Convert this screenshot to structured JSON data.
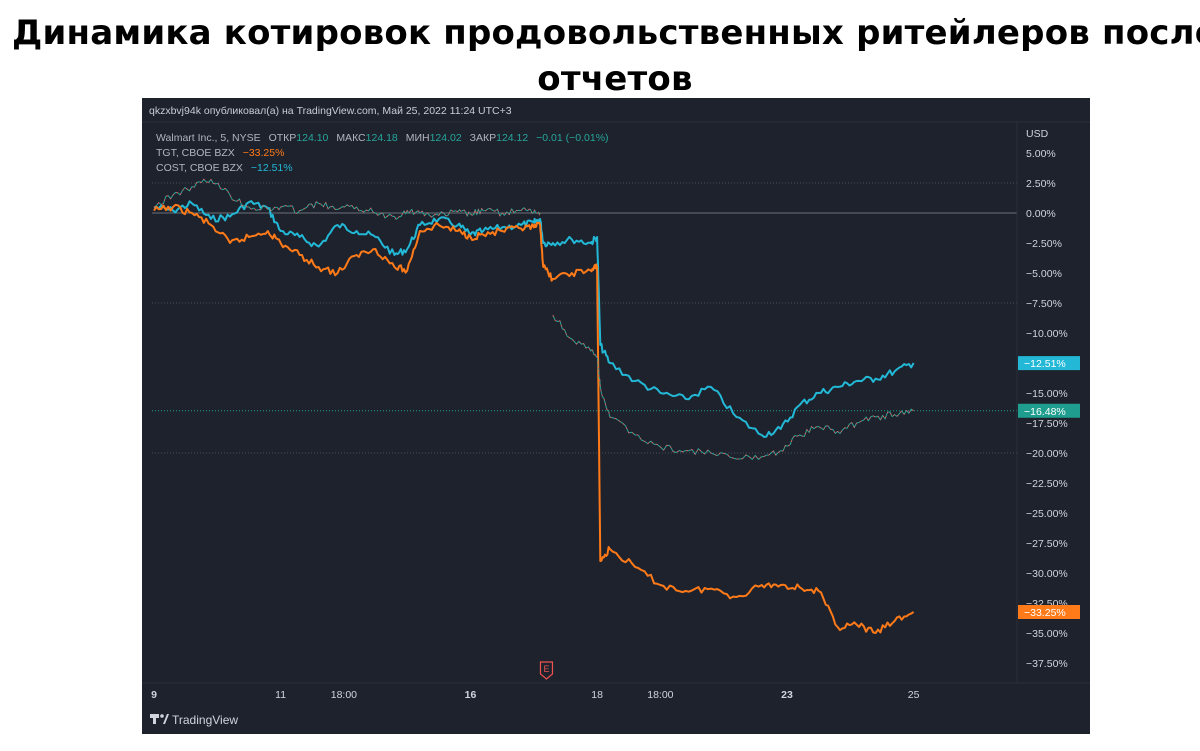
{
  "page": {
    "title": "Динамика котировок продовольственных ритейлеров после отчетов"
  },
  "chart": {
    "attribution": "qkzxbvj94k опубликовал(а) на TradingView.com, Май 25, 2022 11:24 UTC+3",
    "currency_label": "USD",
    "watermark": "TradingView",
    "earnings_marker": "E",
    "legend": {
      "main": {
        "name": "Walmart Inc., 5, NYSE",
        "open_label": "ОТКР",
        "open_value": "124.10",
        "high_label": "МАКС",
        "high_value": "124.18",
        "low_label": "МИН",
        "low_value": "124.02",
        "close_label": "ЗАКР",
        "close_value": "124.12",
        "change": "−0.01 (−0.01%)"
      },
      "tgt": {
        "name": "TGT, CBOE BZX",
        "change": "−33.25%"
      },
      "cost": {
        "name": "COST, CBOE BZX",
        "change": "−12.51%"
      }
    },
    "price_badges": {
      "cost": "−12.51%",
      "wmt": "−16.48%",
      "tgt": "−33.25%"
    },
    "colors": {
      "background": "#1e222d",
      "cost": "#22b8d6",
      "tgt": "#ff7a18",
      "wmt_up": "#26a69a",
      "wmt_down": "#ef5350",
      "wmt_badge": "#1f9e8f",
      "axis_text": "#d1d4dc"
    }
  },
  "chart_data": {
    "type": "line",
    "title": "Динамика котировок продовольственных ритейлеров после отчетов",
    "ylabel": "USD",
    "ylim": [
      -39,
      7
    ],
    "grid": false,
    "legend_position": "top-left",
    "y_ticks": [
      "5.00%",
      "2.50%",
      "0.00%",
      "−2.50%",
      "−5.00%",
      "−7.50%",
      "−10.00%",
      "−12.50%",
      "−15.00%",
      "−17.50%",
      "−20.00%",
      "−22.50%",
      "−25.00%",
      "−27.50%",
      "−30.00%",
      "−32.50%",
      "−35.00%",
      "−37.50%"
    ],
    "y_tick_values": [
      5,
      2.5,
      0,
      -2.5,
      -5,
      -7.5,
      -10,
      -12.5,
      -15,
      -17.5,
      -20,
      -22.5,
      -25,
      -27.5,
      -30,
      -32.5,
      -35,
      -37.5
    ],
    "x_ticks": [
      {
        "label": "9",
        "t": 0,
        "bold": true
      },
      {
        "label": "11",
        "t": 2
      },
      {
        "label": "18:00",
        "t": 3
      },
      {
        "label": "16",
        "t": 5,
        "bold": true
      },
      {
        "label": "18",
        "t": 7
      },
      {
        "label": "18:00",
        "t": 8
      },
      {
        "label": "23",
        "t": 10,
        "bold": true
      },
      {
        "label": "25",
        "t": 12
      }
    ],
    "x_range": [
      0,
      14.1
    ],
    "earnings_t": 6.2,
    "series": [
      {
        "name": "COST, CBOE BZX",
        "x": [
          0,
          0.3,
          0.6,
          0.9,
          1.2,
          1.5,
          1.8,
          2.0,
          2.3,
          2.6,
          2.9,
          3.2,
          3.5,
          3.8,
          4.0,
          4.2,
          4.5,
          4.8,
          5.0,
          5.2,
          5.5,
          5.8,
          6.0,
          6.1,
          6.15,
          6.3,
          6.6,
          6.9,
          7.0,
          7.05,
          7.2,
          7.6,
          8.0,
          8.4,
          8.8,
          9.2,
          9.6,
          9.9,
          10.2,
          10.5,
          10.8,
          11.1,
          11.4,
          11.7,
          12.0
        ],
        "values": [
          0.5,
          0.2,
          0.8,
          -0.5,
          -0.3,
          0.9,
          0.4,
          -1.5,
          -2.0,
          -2.8,
          -1.0,
          -1.5,
          -2.0,
          -3.5,
          -3.0,
          -1.0,
          -0.5,
          -1.0,
          -1.8,
          -1.5,
          -1.2,
          -1.0,
          -0.8,
          -0.5,
          -2.5,
          -2.5,
          -2.2,
          -2.5,
          -2.0,
          -11.0,
          -12.5,
          -14.0,
          -15.0,
          -15.5,
          -14.5,
          -17.0,
          -18.5,
          -18.0,
          -16.0,
          -15.0,
          -14.5,
          -14.0,
          -13.8,
          -13.2,
          -12.5
        ]
      },
      {
        "name": "TGT, CBOE BZX",
        "x": [
          0,
          0.3,
          0.6,
          0.9,
          1.2,
          1.5,
          1.8,
          2.0,
          2.3,
          2.6,
          2.9,
          3.2,
          3.5,
          3.8,
          4.0,
          4.2,
          4.5,
          4.8,
          5.0,
          5.2,
          5.5,
          5.8,
          6.0,
          6.1,
          6.15,
          6.3,
          6.6,
          6.9,
          7.0,
          7.05,
          7.2,
          7.6,
          8.0,
          8.4,
          8.8,
          9.2,
          9.6,
          9.9,
          10.2,
          10.5,
          10.8,
          11.1,
          11.4,
          11.7,
          12.0
        ],
        "values": [
          0.2,
          0.5,
          0.0,
          -1.0,
          -2.5,
          -2.0,
          -1.5,
          -2.5,
          -3.5,
          -4.5,
          -5.0,
          -3.5,
          -3.0,
          -4.5,
          -4.8,
          -1.5,
          -1.0,
          -1.5,
          -2.0,
          -1.8,
          -1.5,
          -1.3,
          -1.2,
          -1.0,
          -4.5,
          -5.5,
          -5.0,
          -4.8,
          -4.5,
          -29.0,
          -28.0,
          -29.5,
          -31.0,
          -31.5,
          -31.3,
          -32.0,
          -31.0,
          -31.0,
          -31.2,
          -31.5,
          -34.5,
          -34.3,
          -35.0,
          -34.0,
          -33.25
        ]
      },
      {
        "name": "Walmart Inc., 5, NYSE",
        "x": [
          0,
          0.3,
          0.6,
          0.9,
          1.2,
          1.5,
          1.8,
          2.0,
          2.3,
          2.6,
          2.9,
          3.2,
          3.5,
          3.8,
          4.0,
          4.2,
          4.5,
          4.8,
          5.0,
          5.2,
          5.5,
          5.8,
          6.0,
          6.1,
          6.15,
          6.3,
          6.6,
          6.9,
          7.0,
          7.05,
          7.2,
          7.6,
          8.0,
          8.4,
          8.8,
          9.2,
          9.6,
          9.9,
          10.2,
          10.5,
          10.8,
          11.1,
          11.4,
          11.7,
          12.0
        ],
        "values": [
          0.5,
          1.5,
          2.2,
          2.8,
          1.5,
          0.5,
          0.3,
          0.5,
          0.2,
          0.8,
          0.3,
          0.5,
          0.0,
          -0.3,
          0.2,
          0.0,
          -0.2,
          0.1,
          -0.1,
          0.2,
          0.0,
          0.2,
          0.1,
          0.0,
          null,
          -8.5,
          -10.5,
          -11.5,
          -12.0,
          -14.5,
          -17.0,
          -18.5,
          -19.5,
          -19.8,
          -20.0,
          -20.5,
          -20.3,
          -19.8,
          -18.5,
          -17.8,
          -18.2,
          -17.5,
          -17.0,
          -16.8,
          -16.48
        ]
      }
    ]
  }
}
